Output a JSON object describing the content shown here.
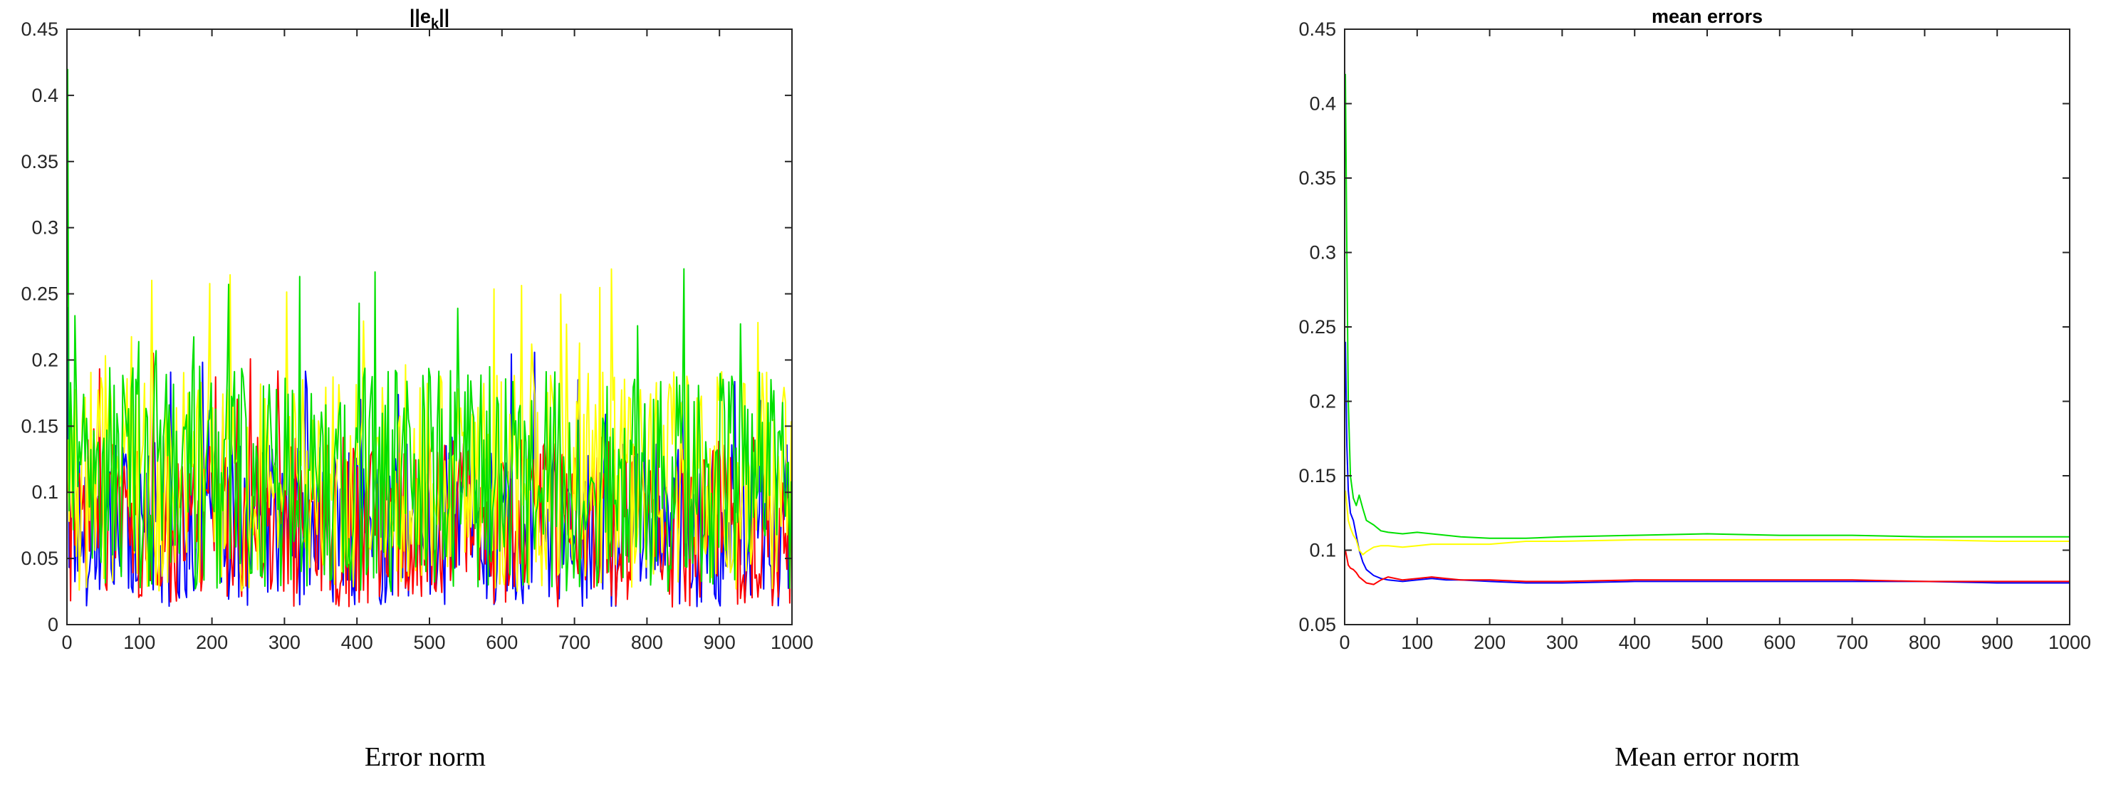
{
  "chart_data": [
    {
      "type": "line",
      "title": "||e_k||",
      "title_main": "||e",
      "title_sub": "k",
      "title_end": "||",
      "caption": "Error norm",
      "xlim": [
        0,
        1000
      ],
      "ylim": [
        0,
        0.45
      ],
      "xticks": [
        "0",
        "100",
        "200",
        "300",
        "400",
        "500",
        "600",
        "700",
        "800",
        "900",
        "1000"
      ],
      "yticks": [
        "0",
        "0.05",
        "0.1",
        "0.15",
        "0.2",
        "0.25",
        "0.3",
        "0.35",
        "0.4",
        "0.45"
      ],
      "series": [
        {
          "color": "#0000ff",
          "range": [
            0.01,
            0.21
          ],
          "mean": 0.075,
          "initial": 0.24
        },
        {
          "color": "#ff0000",
          "range": [
            0.01,
            0.21
          ],
          "mean": 0.078,
          "initial": 0.1
        },
        {
          "color": "#ffff00",
          "range": [
            0.02,
            0.27
          ],
          "mean": 0.108,
          "initial": 0.14
        },
        {
          "color": "#00e000",
          "range": [
            0.02,
            0.27
          ],
          "mean": 0.11,
          "initial": 0.42
        }
      ]
    },
    {
      "type": "line",
      "title": "mean errors",
      "caption": "Mean error norm",
      "xlim": [
        0,
        1000
      ],
      "ylim": [
        0.05,
        0.45
      ],
      "xticks": [
        "0",
        "100",
        "200",
        "300",
        "400",
        "500",
        "600",
        "700",
        "800",
        "900",
        "1000"
      ],
      "yticks": [
        "0.05",
        "0.1",
        "0.15",
        "0.2",
        "0.25",
        "0.3",
        "0.35",
        "0.4",
        "0.45"
      ],
      "series": [
        {
          "color": "#0000ff",
          "x": [
            1,
            3,
            5,
            8,
            12,
            16,
            20,
            25,
            30,
            40,
            50,
            60,
            80,
            100,
            120,
            140,
            160,
            200,
            250,
            300,
            400,
            500,
            600,
            700,
            800,
            900,
            1000
          ],
          "y": [
            0.24,
            0.17,
            0.14,
            0.125,
            0.12,
            0.11,
            0.1,
            0.092,
            0.087,
            0.083,
            0.081,
            0.08,
            0.079,
            0.08,
            0.081,
            0.08,
            0.08,
            0.079,
            0.078,
            0.078,
            0.079,
            0.079,
            0.079,
            0.079,
            0.079,
            0.078,
            0.078
          ]
        },
        {
          "color": "#ff0000",
          "x": [
            1,
            3,
            5,
            8,
            12,
            16,
            20,
            25,
            30,
            40,
            50,
            60,
            80,
            100,
            120,
            140,
            160,
            200,
            250,
            300,
            400,
            500,
            600,
            700,
            800,
            900,
            1000
          ],
          "y": [
            0.1,
            0.095,
            0.09,
            0.088,
            0.087,
            0.085,
            0.082,
            0.08,
            0.078,
            0.077,
            0.08,
            0.082,
            0.08,
            0.081,
            0.082,
            0.081,
            0.08,
            0.08,
            0.079,
            0.079,
            0.08,
            0.08,
            0.08,
            0.08,
            0.079,
            0.079,
            0.079
          ]
        },
        {
          "color": "#ffff00",
          "x": [
            1,
            3,
            5,
            8,
            12,
            16,
            20,
            25,
            30,
            40,
            50,
            60,
            80,
            100,
            120,
            140,
            160,
            200,
            250,
            300,
            400,
            500,
            600,
            700,
            800,
            900,
            1000
          ],
          "y": [
            0.14,
            0.13,
            0.12,
            0.115,
            0.11,
            0.107,
            0.1,
            0.097,
            0.099,
            0.102,
            0.103,
            0.103,
            0.102,
            0.103,
            0.104,
            0.104,
            0.104,
            0.104,
            0.106,
            0.106,
            0.107,
            0.107,
            0.107,
            0.107,
            0.107,
            0.106,
            0.106
          ]
        },
        {
          "color": "#00e000",
          "x": [
            1,
            3,
            5,
            8,
            12,
            16,
            20,
            25,
            30,
            40,
            50,
            60,
            80,
            100,
            120,
            140,
            160,
            200,
            250,
            300,
            400,
            500,
            600,
            700,
            800,
            900,
            1000
          ],
          "y": [
            0.42,
            0.3,
            0.2,
            0.15,
            0.135,
            0.13,
            0.137,
            0.128,
            0.12,
            0.117,
            0.113,
            0.112,
            0.111,
            0.112,
            0.111,
            0.11,
            0.109,
            0.108,
            0.108,
            0.109,
            0.11,
            0.111,
            0.11,
            0.11,
            0.109,
            0.109,
            0.109
          ]
        }
      ]
    }
  ]
}
